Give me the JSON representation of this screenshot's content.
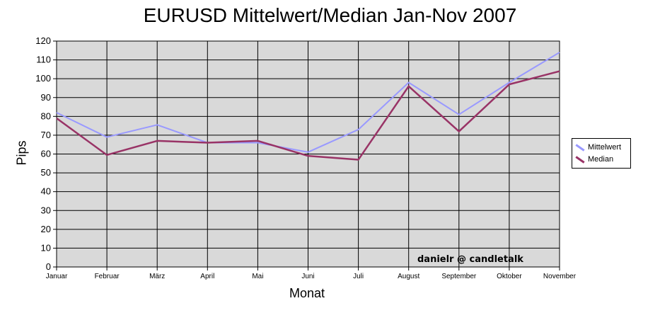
{
  "chart_data": {
    "type": "line",
    "title": "EURUSD Mittelwert/Median Jan-Nov 2007",
    "xlabel": "Monat",
    "ylabel": "Pips",
    "categories": [
      "Januar",
      "Februar",
      "März",
      "April",
      "Mai",
      "Juni",
      "Juli",
      "August",
      "September",
      "Oktober",
      "November"
    ],
    "ylim": [
      0,
      120
    ],
    "yticks": [
      0,
      10,
      20,
      30,
      40,
      50,
      60,
      70,
      80,
      90,
      100,
      110,
      120
    ],
    "grid": true,
    "legend_position": "right",
    "series": [
      {
        "name": "Mittelwert",
        "color": "#9999ff",
        "values": [
          82,
          69,
          75.5,
          66,
          66,
          61,
          73,
          98,
          81,
          98,
          114
        ]
      },
      {
        "name": "Median",
        "color": "#993366",
        "values": [
          79,
          59.5,
          67,
          66,
          67,
          59,
          57,
          96,
          72,
          97,
          104
        ]
      }
    ],
    "plot_background": "#d9d9d9",
    "annotation": "danielr @ candletalk"
  }
}
